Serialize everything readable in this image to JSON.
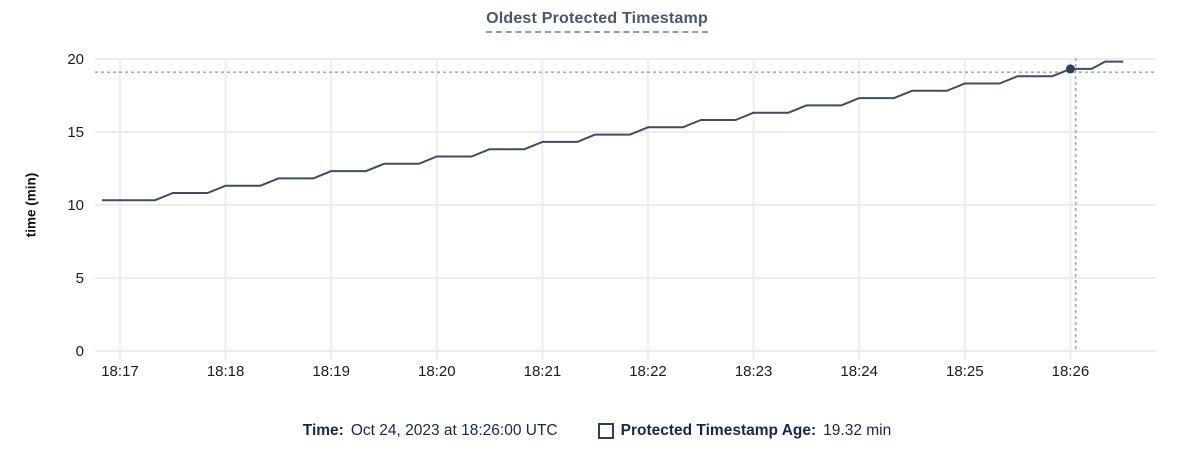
{
  "title": "Oldest Protected Timestamp",
  "footer": {
    "time_label": "Time:",
    "time_value": "Oct 24, 2023 at 18:26:00 UTC",
    "series_label": "Protected Timestamp Age:",
    "series_value": "19.32 min"
  },
  "colors": {
    "title_text": "#47586f",
    "title_underline": "#8c9cb3",
    "footer_text": "#14294e",
    "series_line": "#3d4d68",
    "highlight_dot": "#2e3f5c",
    "crosshair": "#9ab0bc",
    "gridline": "#ededed",
    "tick_text": "#1c1c1c",
    "legend_swatch_border": "#2c3e58"
  },
  "chart_data": {
    "type": "line",
    "title": "Oldest Protected Timestamp",
    "xlabel": "",
    "ylabel": "time (min)",
    "grid": true,
    "legend_position": "bottom",
    "y_ticks": [
      0,
      5,
      10,
      15,
      20
    ],
    "ylim": [
      0,
      20.55
    ],
    "x_tick_labels": [
      "18:17",
      "18:18",
      "18:19",
      "18:20",
      "18:21",
      "18:22",
      "18:23",
      "18:24",
      "18:25",
      "18:26"
    ],
    "x_tick_minutes": [
      0,
      1,
      2,
      3,
      4,
      5,
      6,
      7,
      8,
      9
    ],
    "xlim_minutes": [
      -0.24,
      9.81
    ],
    "series": [
      {
        "name": "Protected Timestamp Age",
        "unit": "min",
        "points": [
          [
            -0.17,
            10.32
          ],
          [
            0.33,
            10.32
          ],
          [
            0.5,
            10.82
          ],
          [
            0.83,
            10.82
          ],
          [
            1,
            11.32
          ],
          [
            1.33,
            11.32
          ],
          [
            1.5,
            11.82
          ],
          [
            1.83,
            11.82
          ],
          [
            2,
            12.32
          ],
          [
            2.33,
            12.32
          ],
          [
            2.5,
            12.82
          ],
          [
            2.83,
            12.82
          ],
          [
            3,
            13.32
          ],
          [
            3.33,
            13.32
          ],
          [
            3.5,
            13.82
          ],
          [
            3.83,
            13.82
          ],
          [
            4,
            14.32
          ],
          [
            4.33,
            14.32
          ],
          [
            4.5,
            14.82
          ],
          [
            4.83,
            14.82
          ],
          [
            5,
            15.32
          ],
          [
            5.33,
            15.32
          ],
          [
            5.5,
            15.82
          ],
          [
            5.83,
            15.82
          ],
          [
            6,
            16.32
          ],
          [
            6.33,
            16.32
          ],
          [
            6.5,
            16.82
          ],
          [
            6.83,
            16.82
          ],
          [
            7,
            17.32
          ],
          [
            7.33,
            17.32
          ],
          [
            7.5,
            17.82
          ],
          [
            7.83,
            17.82
          ],
          [
            8,
            18.32
          ],
          [
            8.33,
            18.32
          ],
          [
            8.5,
            18.82
          ],
          [
            8.83,
            18.82
          ],
          [
            9,
            19.32
          ],
          [
            9.2,
            19.32
          ],
          [
            9.33,
            19.82
          ],
          [
            9.5,
            19.82
          ]
        ]
      }
    ],
    "highlight_point": {
      "x_min": 9.0,
      "value": 19.32,
      "time": "18:26:00",
      "label": "19.32 min"
    },
    "crosshair": {
      "x_min": 9.05,
      "value": 19.1
    }
  }
}
